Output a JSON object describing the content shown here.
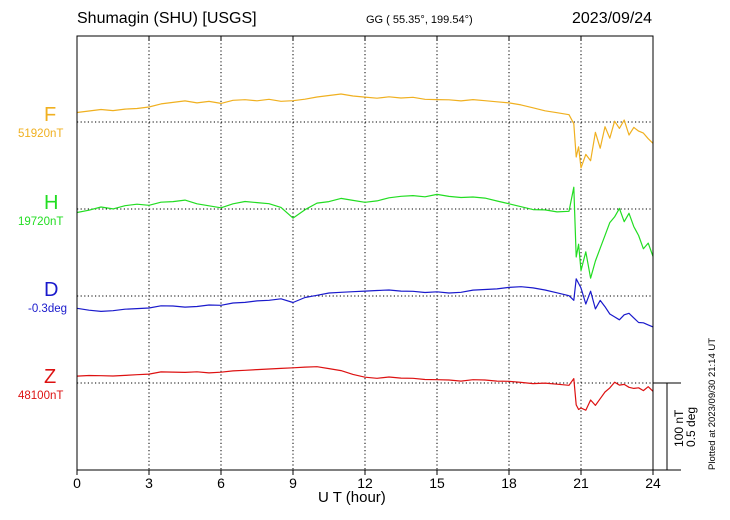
{
  "header": {
    "station": "Shumagin (SHU)  [USGS]",
    "coords": "GG ( 55.35°, 199.54°)",
    "date": "2023/09/24"
  },
  "footer": {
    "plotted": "Plotted at 2023/09/30 21:14 UT"
  },
  "chart_data": {
    "type": "line",
    "xlabel": "U T (hour)",
    "xlim": [
      0,
      24
    ],
    "xticks": [
      "0",
      "3",
      "6",
      "9",
      "12",
      "15",
      "18",
      "21",
      "24"
    ],
    "grid": true,
    "scale_bar": {
      "line1": "100 nT",
      "line2": "0.5 deg"
    },
    "series": [
      {
        "name": "F",
        "baseline": "51920nT",
        "color": "#f0b020",
        "x": [
          0,
          0.5,
          1,
          1.5,
          2,
          2.5,
          3,
          3.5,
          4,
          4.5,
          5,
          5.5,
          6,
          6.5,
          7,
          7.5,
          8,
          8.5,
          9,
          9.5,
          10,
          10.5,
          11,
          11.5,
          12,
          12.5,
          13,
          13.5,
          14,
          14.5,
          15,
          15.5,
          16,
          16.5,
          17,
          17.5,
          18,
          18.5,
          19,
          19.5,
          20,
          20.5,
          20.7,
          20.8,
          20.9,
          21.0,
          21.2,
          21.4,
          21.6,
          21.8,
          22.0,
          22.2,
          22.4,
          22.6,
          22.8,
          23.0,
          23.2,
          23.4,
          23.6,
          23.8,
          24
        ],
        "y": [
          10,
          12,
          14,
          13,
          15,
          16,
          18,
          20,
          22,
          24,
          22,
          24,
          22,
          24,
          25,
          24,
          26,
          24,
          25,
          27,
          28,
          30,
          32,
          30,
          29,
          28,
          28,
          27,
          28,
          26,
          26,
          26,
          25,
          25,
          24,
          23,
          22,
          20,
          17,
          12,
          10,
          8,
          -2,
          -40,
          -28,
          -52,
          -38,
          -45,
          -12,
          -30,
          -5,
          -18,
          0,
          -8,
          2,
          -15,
          -6,
          -10,
          -12,
          -20,
          -25
        ]
      },
      {
        "name": "H",
        "baseline": "19720nT",
        "color": "#22dd22",
        "x": [
          0,
          0.5,
          1,
          1.5,
          2,
          2.5,
          3,
          3.5,
          4,
          4.5,
          5,
          5.5,
          6,
          6.5,
          7,
          7.5,
          8,
          8.5,
          9,
          9.5,
          10,
          10.5,
          11,
          11.5,
          12,
          12.5,
          13,
          13.5,
          14,
          14.5,
          15,
          15.5,
          16,
          16.5,
          17,
          17.5,
          18,
          18.5,
          19,
          19.5,
          20,
          20.5,
          20.7,
          20.8,
          20.9,
          21.0,
          21.2,
          21.4,
          21.6,
          21.8,
          22.0,
          22.2,
          22.4,
          22.6,
          22.8,
          23.0,
          23.2,
          23.4,
          23.6,
          23.8,
          24
        ],
        "y": [
          -5,
          -2,
          2,
          0,
          4,
          6,
          5,
          7,
          8,
          10,
          6,
          4,
          2,
          5,
          8,
          7,
          6,
          2,
          -10,
          0,
          6,
          8,
          12,
          10,
          8,
          10,
          12,
          14,
          15,
          14,
          17,
          15,
          14,
          13,
          12,
          9,
          6,
          3,
          0,
          -2,
          -4,
          -3,
          25,
          -55,
          -40,
          -70,
          -50,
          -80,
          -60,
          -45,
          -30,
          -15,
          -10,
          0,
          -15,
          -5,
          -20,
          -30,
          -45,
          -40,
          -55
        ]
      },
      {
        "name": "D",
        "baseline": "-0.3deg",
        "color": "#1a1acc",
        "x": [
          0,
          0.5,
          1,
          1.5,
          2,
          2.5,
          3,
          3.5,
          4,
          4.5,
          5,
          5.5,
          6,
          6.5,
          7,
          7.5,
          8,
          8.5,
          9,
          9.5,
          10,
          10.5,
          11,
          11.5,
          12,
          12.5,
          13,
          13.5,
          14,
          14.5,
          15,
          15.5,
          16,
          16.5,
          17,
          17.5,
          18,
          18.5,
          19,
          19.5,
          20,
          20.5,
          20.7,
          20.8,
          20.9,
          21.0,
          21.2,
          21.4,
          21.6,
          21.8,
          22.0,
          22.2,
          22.4,
          22.6,
          22.8,
          23.0,
          23.2,
          23.4,
          23.6,
          23.8,
          24
        ],
        "y": [
          -15,
          -17,
          -18,
          -17,
          -15,
          -14,
          -13,
          -12,
          -12,
          -13,
          -12,
          -10,
          -10,
          -9,
          -8,
          -6,
          -5,
          -3,
          -7,
          -1,
          0,
          3,
          4,
          5,
          6,
          7,
          6,
          5,
          5,
          4,
          5,
          4,
          5,
          6,
          7,
          8,
          10,
          11,
          10,
          6,
          3,
          0,
          -5,
          20,
          15,
          10,
          -10,
          5,
          -15,
          -5,
          -12,
          -20,
          -25,
          -28,
          -22,
          -20,
          -25,
          -30,
          -30,
          -34,
          -36
        ]
      },
      {
        "name": "Z",
        "baseline": "48100nT",
        "color": "#dd1111",
        "x": [
          0,
          0.5,
          1,
          1.5,
          2,
          2.5,
          3,
          3.5,
          4,
          4.5,
          5,
          5.5,
          6,
          6.5,
          7,
          7.5,
          8,
          8.5,
          9,
          9.5,
          10,
          10.5,
          11,
          11.5,
          12,
          12.5,
          13,
          13.5,
          14,
          14.5,
          15,
          15.5,
          16,
          16.5,
          17,
          17.5,
          18,
          18.5,
          19,
          19.5,
          20,
          20.5,
          20.7,
          20.8,
          20.9,
          21.0,
          21.2,
          21.4,
          21.6,
          21.8,
          22.0,
          22.2,
          22.4,
          22.6,
          22.8,
          23.0,
          23.2,
          23.4,
          23.6,
          23.8,
          24
        ],
        "y": [
          7,
          8,
          8,
          8,
          9,
          10,
          11,
          12,
          12,
          12,
          13,
          12,
          13,
          13,
          14,
          15,
          16,
          17,
          18,
          19,
          18,
          16,
          14,
          10,
          7,
          6,
          6,
          5,
          5,
          4,
          4,
          4,
          3,
          3,
          3,
          2,
          2,
          1,
          0,
          -1,
          -2,
          -3,
          5,
          -25,
          -30,
          -28,
          -32,
          -20,
          -26,
          -18,
          -10,
          -5,
          0,
          -3,
          -2,
          -5,
          -6,
          -5,
          -8,
          -5,
          -10
        ]
      }
    ]
  }
}
